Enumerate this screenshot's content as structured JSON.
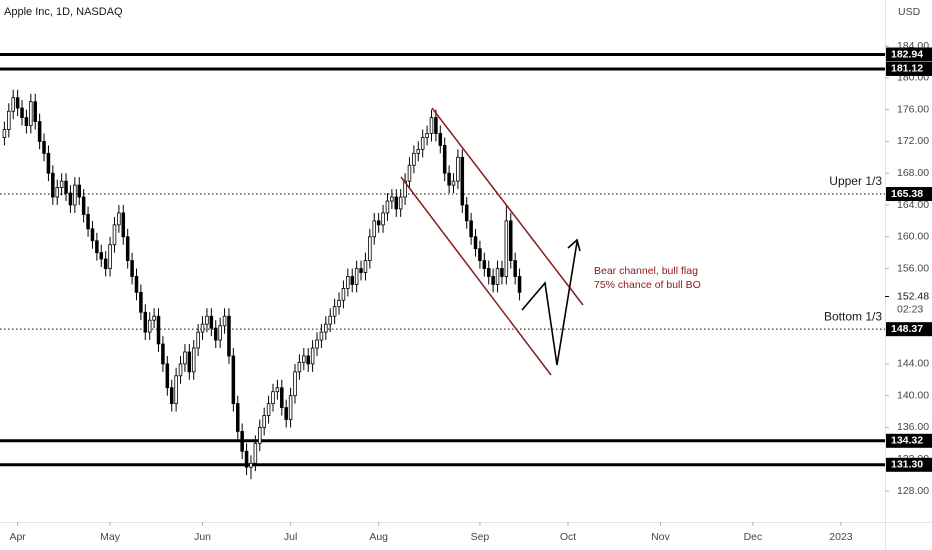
{
  "header": {
    "title": "Apple Inc, 1D, NASDAQ",
    "currency": "USD"
  },
  "chart_data": {
    "type": "candlestick",
    "open": [
      172.5,
      173.5,
      175.8,
      177.5,
      176.2,
      175.0,
      174.0,
      177.0,
      174.5,
      172.0,
      170.5,
      168.0,
      165.0,
      166.2,
      167.0,
      165.5,
      164.0,
      166.5,
      165.0,
      162.8,
      161.0,
      159.5,
      158.0,
      157.2,
      156.0,
      159.0,
      161.5,
      163.0,
      160.0,
      157.0,
      155.0,
      153.0,
      150.5,
      148.0,
      149.5,
      150.0,
      146.5,
      144.0,
      141.0,
      139.0,
      142.5,
      144.0,
      145.5,
      143.0,
      146.0,
      148.0,
      149.0,
      150.0,
      148.5,
      147.0,
      148.8,
      150.0,
      145.0,
      139.0,
      135.5,
      133.0,
      131.0,
      131.5,
      134.0,
      136.0,
      137.5,
      139.0,
      140.5,
      141.0,
      138.5,
      137.0,
      140.0,
      143.0,
      144.2,
      145.0,
      144.0,
      146.0,
      147.0,
      148.0,
      149.0,
      150.0,
      151.2,
      152.0,
      153.5,
      155.0,
      154.0,
      156.0,
      155.5,
      157.0,
      160.0,
      162.0,
      161.5,
      163.0,
      164.5,
      165.0,
      163.5,
      165.0,
      167.0,
      169.0,
      170.5,
      171.0,
      172.5,
      173.0,
      175.0,
      173.0,
      171.5,
      168.0,
      166.5,
      167.0,
      170.0,
      164.0,
      162.0,
      160.0,
      158.5,
      157.0,
      156.0,
      155.0,
      154.0,
      156.0,
      155.0,
      162.0,
      157.0,
      155.0
    ],
    "high": [
      174.5,
      176.8,
      178.5,
      178.5,
      177.2,
      176.0,
      178.0,
      178.0,
      175.5,
      173.0,
      171.5,
      169.0,
      167.2,
      168.0,
      168.0,
      166.5,
      167.5,
      167.5,
      166.0,
      163.8,
      162.0,
      160.5,
      159.0,
      158.2,
      160.0,
      162.5,
      164.0,
      164.0,
      161.0,
      158.0,
      156.0,
      154.0,
      151.5,
      150.5,
      151.0,
      151.0,
      147.5,
      145.0,
      142.0,
      143.5,
      145.0,
      146.5,
      146.5,
      147.0,
      149.0,
      150.0,
      151.0,
      151.0,
      149.5,
      149.8,
      151.0,
      151.0,
      146.0,
      140.0,
      136.5,
      134.0,
      132.5,
      135.0,
      137.0,
      138.5,
      140.0,
      141.5,
      142.0,
      142.0,
      139.5,
      141.0,
      144.0,
      145.2,
      146.0,
      146.0,
      147.0,
      148.0,
      149.0,
      150.0,
      151.0,
      152.2,
      153.0,
      154.5,
      156.0,
      156.0,
      157.0,
      157.0,
      158.0,
      161.0,
      163.0,
      163.0,
      164.0,
      165.5,
      166.0,
      166.0,
      166.0,
      168.0,
      170.0,
      171.5,
      172.0,
      173.5,
      174.0,
      176.0,
      176.0,
      174.0,
      172.5,
      169.0,
      168.0,
      171.0,
      171.0,
      165.0,
      163.0,
      161.0,
      159.5,
      158.0,
      157.0,
      156.0,
      157.0,
      157.0,
      164.0,
      163.0,
      158.0,
      156.0
    ],
    "low": [
      171.5,
      172.5,
      174.8,
      175.2,
      174.0,
      173.0,
      173.0,
      173.5,
      171.0,
      169.5,
      167.0,
      164.0,
      164.0,
      165.2,
      164.5,
      163.0,
      163.0,
      164.0,
      161.8,
      160.0,
      158.5,
      157.0,
      156.2,
      155.0,
      155.0,
      158.0,
      160.5,
      159.0,
      156.0,
      154.0,
      152.0,
      149.5,
      147.0,
      147.0,
      148.5,
      145.5,
      143.0,
      140.0,
      138.0,
      138.0,
      141.5,
      143.0,
      142.0,
      142.0,
      145.0,
      147.0,
      148.0,
      147.5,
      146.0,
      146.0,
      147.8,
      144.0,
      138.0,
      134.5,
      132.0,
      130.0,
      129.5,
      130.5,
      133.0,
      135.0,
      136.5,
      138.0,
      139.5,
      137.5,
      136.0,
      136.0,
      139.0,
      142.0,
      143.2,
      143.0,
      143.0,
      145.0,
      146.0,
      147.0,
      148.0,
      149.0,
      150.2,
      151.0,
      152.5,
      153.0,
      153.0,
      154.5,
      154.5,
      156.0,
      159.0,
      160.5,
      160.5,
      162.0,
      163.5,
      162.5,
      162.5,
      164.0,
      166.0,
      168.0,
      169.5,
      170.0,
      171.5,
      172.0,
      172.0,
      170.5,
      167.0,
      165.5,
      165.5,
      166.0,
      163.0,
      161.0,
      159.0,
      157.5,
      156.0,
      155.0,
      154.0,
      153.0,
      153.0,
      154.0,
      154.0,
      156.0,
      154.0,
      152.0
    ],
    "close": [
      173.5,
      175.8,
      177.5,
      176.2,
      175.0,
      174.0,
      177.0,
      174.5,
      172.0,
      170.5,
      168.0,
      165.0,
      166.2,
      167.0,
      165.5,
      164.0,
      166.5,
      165.0,
      162.8,
      161.0,
      159.5,
      158.0,
      157.2,
      156.0,
      159.0,
      161.5,
      163.0,
      160.0,
      157.0,
      155.0,
      153.0,
      150.5,
      148.0,
      149.5,
      150.0,
      146.5,
      144.0,
      141.0,
      139.0,
      142.5,
      144.0,
      145.5,
      143.0,
      146.0,
      148.0,
      149.0,
      150.0,
      148.5,
      147.0,
      148.8,
      150.0,
      145.0,
      139.0,
      135.5,
      133.0,
      131.0,
      131.5,
      134.0,
      136.0,
      137.5,
      139.0,
      140.5,
      141.0,
      138.5,
      137.0,
      140.0,
      143.0,
      144.2,
      145.0,
      144.0,
      146.0,
      147.0,
      148.0,
      149.0,
      150.0,
      151.2,
      152.0,
      153.5,
      155.0,
      154.0,
      156.0,
      155.5,
      157.0,
      160.0,
      162.0,
      161.5,
      163.0,
      164.5,
      165.0,
      163.5,
      165.0,
      167.0,
      169.0,
      170.5,
      171.0,
      172.5,
      173.0,
      175.0,
      173.0,
      171.5,
      168.0,
      166.5,
      167.0,
      170.0,
      164.0,
      162.0,
      160.0,
      158.5,
      157.0,
      156.0,
      155.0,
      154.0,
      156.0,
      155.0,
      162.0,
      157.0,
      155.0,
      153.0
    ],
    "up_color": "#ffffff",
    "down_color": "#000000",
    "ylim": [
      124.1,
      189.8
    ],
    "yticks": [
      {
        "value": 128,
        "label": "128.00"
      },
      {
        "value": 132,
        "label": "132.00"
      },
      {
        "value": 136,
        "label": "136.00"
      },
      {
        "value": 140,
        "label": "140.00"
      },
      {
        "value": 144,
        "label": "144.00"
      },
      {
        "value": 156,
        "label": "156.00"
      },
      {
        "value": 160,
        "label": "160.00"
      },
      {
        "value": 164,
        "label": "164.00"
      },
      {
        "value": 168,
        "label": "168.00"
      },
      {
        "value": 172,
        "label": "172.00"
      },
      {
        "value": 176,
        "label": "176.00"
      },
      {
        "value": 180,
        "label": "180.00"
      },
      {
        "value": 184,
        "label": "184.00"
      }
    ],
    "xlim": [
      -1,
      200
    ],
    "xticks": [
      {
        "value": 3,
        "label": "Apr"
      },
      {
        "value": 24,
        "label": "May"
      },
      {
        "value": 45,
        "label": "Jun"
      },
      {
        "value": 65,
        "label": "Jul"
      },
      {
        "value": 85,
        "label": "Aug"
      },
      {
        "value": 108,
        "label": "Sep"
      },
      {
        "value": 128,
        "label": "Oct"
      },
      {
        "value": 149,
        "label": "Nov"
      },
      {
        "value": 170,
        "label": "Dec"
      },
      {
        "value": 190,
        "label": "2023"
      }
    ],
    "levels": [
      {
        "value": 182.94,
        "style": "solid"
      },
      {
        "value": 181.12,
        "style": "solid"
      },
      {
        "value": 165.38,
        "style": "dotted",
        "name": "Upper 1/3"
      },
      {
        "value": 148.37,
        "style": "dotted",
        "name": "Bottom 1/3"
      },
      {
        "value": 134.32,
        "style": "solid"
      },
      {
        "value": 131.3,
        "label": "131.30",
        "style": "solid"
      }
    ],
    "last_price": {
      "value": 152.48,
      "countdown": "02:23"
    },
    "annotations": [
      "Bear channel, bull flag",
      "75% chance of bull BO"
    ]
  }
}
